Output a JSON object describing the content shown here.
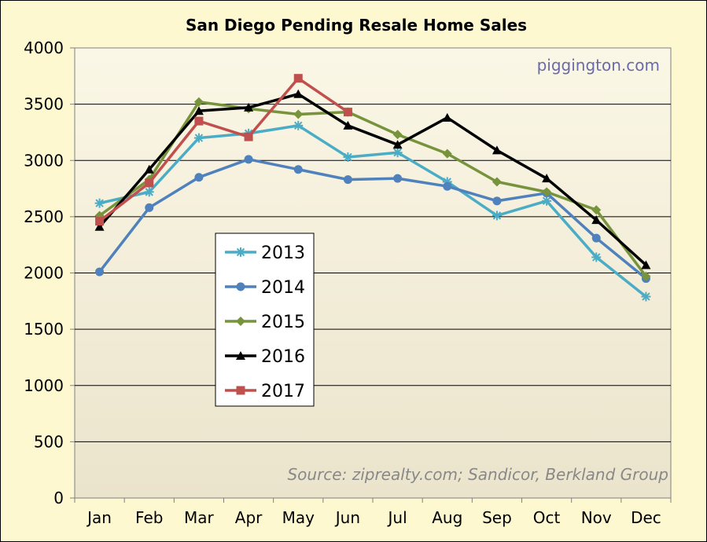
{
  "chart_data": {
    "type": "line",
    "title": "San Diego Pending Resale Home Sales",
    "watermark": "piggington.com",
    "source_note": "Source: ziprealty.com; Sandicor, Berkland Group",
    "xlabel": "",
    "ylabel": "",
    "categories": [
      "Jan",
      "Feb",
      "Mar",
      "Apr",
      "May",
      "Jun",
      "Jul",
      "Aug",
      "Sep",
      "Oct",
      "Nov",
      "Dec"
    ],
    "ylim": [
      0,
      4000
    ],
    "yticks": [
      0,
      500,
      1000,
      1500,
      2000,
      2500,
      3000,
      3500,
      4000
    ],
    "grid": "horizontal",
    "legend_placement": "center-left",
    "series": [
      {
        "name": "2013",
        "color": "#4bacc6",
        "marker": "star",
        "values": [
          2620,
          2720,
          3200,
          3240,
          3310,
          3030,
          3070,
          2810,
          2510,
          2640,
          2140,
          1790
        ]
      },
      {
        "name": "2014",
        "color": "#4f81bd",
        "marker": "circle",
        "values": [
          2010,
          2580,
          2850,
          3010,
          2920,
          2830,
          2840,
          2770,
          2640,
          2710,
          2310,
          1950
        ]
      },
      {
        "name": "2015",
        "color": "#77933c",
        "marker": "diamond",
        "values": [
          2510,
          2830,
          3520,
          3460,
          3410,
          3430,
          3230,
          3060,
          2810,
          2720,
          2560,
          1970
        ]
      },
      {
        "name": "2016",
        "color": "#000000",
        "marker": "triangle",
        "values": [
          2410,
          2920,
          3440,
          3470,
          3590,
          3310,
          3140,
          3380,
          3090,
          2840,
          2470,
          2070
        ]
      },
      {
        "name": "2017",
        "color": "#c0504d",
        "marker": "square",
        "values": [
          2460,
          2800,
          3350,
          3210,
          3730,
          3430,
          null,
          null,
          null,
          null,
          null,
          null
        ]
      }
    ]
  }
}
